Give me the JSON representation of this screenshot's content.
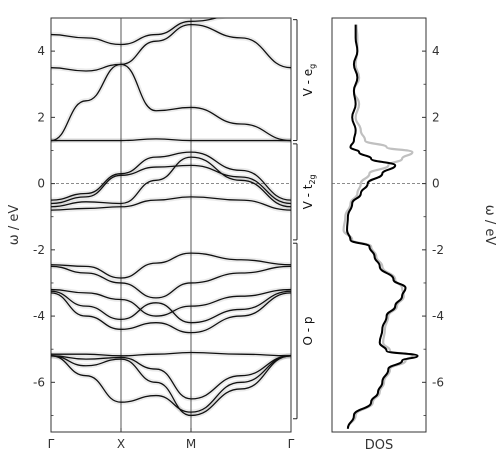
{
  "chart_data": [
    {
      "type": "line",
      "title": "",
      "xlabel": "",
      "ylabel": "ω / eV",
      "x_ticks": [
        "Γ",
        "X",
        "M",
        "Γ"
      ],
      "y_ticks": [
        "-6",
        "-4",
        "-2",
        "0",
        "2",
        "4"
      ],
      "ylim": [
        -7.5,
        5.0
      ],
      "grid": false,
      "fermi_level": 0,
      "region_labels": [
        {
          "text": "V - e",
          "sub": "g",
          "range": [
            1.3,
            4.95
          ]
        },
        {
          "text": "V - t",
          "sub": "2g",
          "range": [
            -1.7,
            1.2
          ]
        },
        {
          "text": "O - p",
          "sub": "",
          "range": [
            -7.1,
            -1.8
          ]
        }
      ],
      "series": [
        {
          "values": [
            4.5,
            4.4,
            4.2,
            4.5,
            4.9,
            5.1,
            5.3
          ]
        },
        {
          "values": [
            3.5,
            3.4,
            3.6,
            4.3,
            4.8,
            4.4,
            3.5
          ]
        },
        {
          "values": [
            1.3,
            1.3,
            1.3,
            1.35,
            1.3,
            1.3,
            1.3
          ]
        },
        {
          "values": [
            1.3,
            2.5,
            3.6,
            2.2,
            2.3,
            1.8,
            1.3
          ]
        },
        {
          "values": [
            -0.5,
            -0.3,
            0.3,
            0.8,
            0.95,
            0.4,
            -0.5
          ]
        },
        {
          "values": [
            -0.6,
            -0.4,
            0.25,
            0.5,
            0.55,
            0.2,
            -0.6
          ]
        },
        {
          "values": [
            -0.7,
            -0.55,
            -0.6,
            0.1,
            0.8,
            0.1,
            -0.7
          ]
        },
        {
          "values": [
            -0.8,
            -0.75,
            -0.7,
            -0.5,
            -0.4,
            -0.5,
            -0.8
          ]
        },
        {
          "values": [
            -2.45,
            -2.5,
            -2.85,
            -2.4,
            -2.1,
            -2.3,
            -2.45
          ]
        },
        {
          "values": [
            -2.5,
            -2.7,
            -3.0,
            -3.45,
            -3.0,
            -2.7,
            -2.5
          ]
        },
        {
          "values": [
            -3.2,
            -3.3,
            -3.5,
            -4.0,
            -3.7,
            -3.4,
            -3.2
          ]
        },
        {
          "values": [
            -3.25,
            -3.7,
            -4.1,
            -3.6,
            -4.2,
            -3.8,
            -3.25
          ]
        },
        {
          "values": [
            -3.3,
            -4.0,
            -4.4,
            -4.2,
            -4.5,
            -4.0,
            -3.3
          ]
        },
        {
          "values": [
            -5.15,
            -5.15,
            -5.2,
            -5.15,
            -5.1,
            -5.15,
            -5.2
          ]
        },
        {
          "values": [
            -5.2,
            -5.3,
            -5.25,
            -5.6,
            -6.5,
            -5.8,
            -5.2
          ]
        },
        {
          "values": [
            -5.2,
            -5.8,
            -6.6,
            -6.4,
            -6.9,
            -6.0,
            -5.2
          ]
        },
        {
          "values": [
            -5.2,
            -5.5,
            -5.3,
            -6.0,
            -7.0,
            -6.2,
            -5.2
          ]
        }
      ]
    },
    {
      "type": "line",
      "title": "",
      "xlabel": "DOS",
      "ylabel": "ω / eV",
      "y_ticks": [
        "-6",
        "-4",
        "-2",
        "0",
        "2",
        "4"
      ],
      "ylim": [
        -7.5,
        5.0
      ],
      "grid": false,
      "series": [
        {
          "color": "#000000",
          "y": [
            -7.4,
            -7.0,
            -6.6,
            -6.3,
            -6.0,
            -5.6,
            -5.35,
            -5.2,
            -5.05,
            -4.8,
            -4.4,
            -4.0,
            -3.7,
            -3.4,
            -3.15,
            -2.9,
            -2.5,
            -2.2,
            -1.9,
            -1.7,
            -1.4,
            -1.0,
            -0.6,
            -0.3,
            0.0,
            0.3,
            0.55,
            0.75,
            0.95,
            1.1,
            1.3,
            1.6,
            2.0,
            2.4,
            2.8,
            3.2,
            3.6,
            4.0,
            4.4,
            4.8
          ],
          "x": [
            0.15,
            0.22,
            0.42,
            0.5,
            0.55,
            0.62,
            0.78,
            0.96,
            0.6,
            0.52,
            0.55,
            0.6,
            0.7,
            0.78,
            0.82,
            0.68,
            0.52,
            0.46,
            0.4,
            0.18,
            0.14,
            0.15,
            0.2,
            0.3,
            0.38,
            0.55,
            0.7,
            0.42,
            0.28,
            0.18,
            0.22,
            0.24,
            0.2,
            0.24,
            0.22,
            0.26,
            0.22,
            0.26,
            0.24,
            0.24
          ]
        },
        {
          "color": "#c0c0c0",
          "y": [
            -7.4,
            -7.0,
            -6.6,
            -6.3,
            -6.0,
            -5.6,
            -5.35,
            -5.2,
            -5.05,
            -4.8,
            -4.4,
            -4.0,
            -3.7,
            -3.4,
            -3.15,
            -2.9,
            -2.5,
            -2.2,
            -1.9,
            -1.7,
            -1.4,
            -1.0,
            -0.6,
            -0.3,
            0.0,
            0.3,
            0.55,
            0.75,
            0.95,
            1.1,
            1.3,
            1.6,
            2.0,
            2.4,
            2.8,
            3.2,
            3.6,
            4.0,
            4.4,
            4.8
          ],
          "x": [
            0.15,
            0.24,
            0.44,
            0.52,
            0.57,
            0.64,
            0.82,
            0.9,
            0.64,
            0.56,
            0.58,
            0.62,
            0.72,
            0.8,
            0.78,
            0.7,
            0.55,
            0.48,
            0.42,
            0.2,
            0.1,
            0.12,
            0.18,
            0.26,
            0.3,
            0.4,
            0.62,
            0.78,
            0.9,
            0.6,
            0.35,
            0.3,
            0.24,
            0.28,
            0.22,
            0.28,
            0.24,
            0.26,
            0.26,
            0.25
          ]
        }
      ]
    }
  ]
}
